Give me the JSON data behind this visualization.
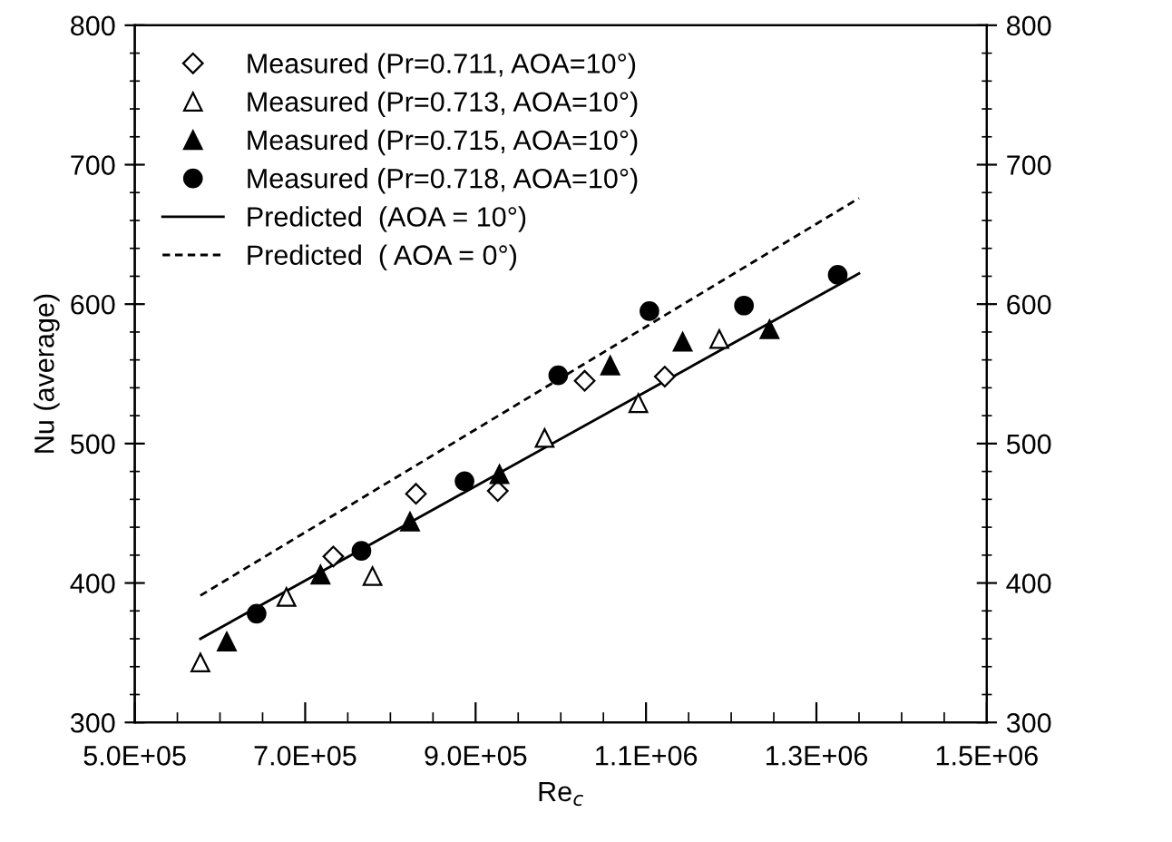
{
  "chart_data": {
    "type": "scatter",
    "xlabel": "Re$_{c}$",
    "ylabel": "Nu (average)",
    "xlim": [
      500000,
      1500000
    ],
    "xticks": [
      {
        "value": 500000,
        "label": "5.0E+05"
      },
      {
        "value": 700000,
        "label": "7.0E+05"
      },
      {
        "value": 900000,
        "label": "9.0E+05"
      },
      {
        "value": 1100000,
        "label": "1.1E+06"
      },
      {
        "value": 1300000,
        "label": "1.3E+06"
      },
      {
        "value": 1500000,
        "label": "1.5E+06"
      }
    ],
    "ylim": [
      300,
      800
    ],
    "yticks": [
      300,
      400,
      500,
      600,
      700,
      800
    ],
    "y2lim": [
      300,
      800
    ],
    "y2ticks": [
      300,
      400,
      500,
      600,
      700,
      800
    ],
    "grid": false,
    "legend": "top left",
    "series": [
      {
        "name": "Measured (Pr=0.711, AOA=10°)",
        "marker": "diamond",
        "color": "#ffffff",
        "x": [
          733000,
          830000,
          926000,
          1028000,
          1122000
        ],
        "values": [
          419,
          464,
          466,
          545,
          548
        ]
      },
      {
        "name": "Measured (Pr=0.713, AOA=10°)",
        "marker": "triangle",
        "color": "#ffffff",
        "x": [
          577000,
          678000,
          779000,
          981000,
          1091000,
          1186000
        ],
        "values": [
          343,
          390,
          405,
          504,
          529,
          575
        ]
      },
      {
        "name": "Measured (Pr=0.715, AOA=10°)",
        "marker": "triangle",
        "color": "#000000",
        "x": [
          608000,
          718000,
          823000,
          928000,
          1058000,
          1143000,
          1245000
        ],
        "values": [
          358,
          406,
          444,
          478,
          556,
          573,
          582
        ]
      },
      {
        "name": "Measured (Pr=0.718, AOA=10°)",
        "marker": "circle",
        "color": "#000000",
        "x": [
          643000,
          766000,
          887000,
          997000,
          1104000,
          1215000,
          1325000
        ],
        "values": [
          378,
          423,
          473,
          549,
          595,
          599,
          621
        ]
      },
      {
        "name": "Predicted  (AOA = 10°)",
        "type": "line",
        "line_style": "solid",
        "color": "#000000",
        "x": [
          577000,
          1350000
        ],
        "values": [
          360,
          622
        ]
      },
      {
        "name": "Predicted  ( AOA = 0°)",
        "type": "line",
        "line_style": "dashed",
        "color": "#000000",
        "x": [
          577000,
          1350000
        ],
        "values": [
          391,
          676
        ]
      }
    ]
  }
}
